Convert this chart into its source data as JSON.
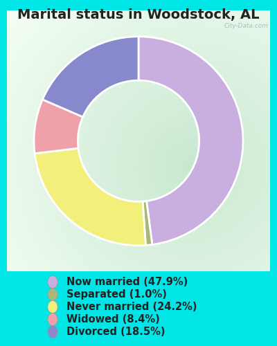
{
  "title": "Marital status in Woodstock, AL",
  "slices": [
    47.9,
    1.0,
    24.2,
    8.4,
    18.5
  ],
  "labels": [
    "Now married (47.9%)",
    "Separated (1.0%)",
    "Never married (24.2%)",
    "Widowed (8.4%)",
    "Divorced (18.5%)"
  ],
  "colors": [
    "#c9aee0",
    "#a8b87a",
    "#f2f07a",
    "#f0a0a8",
    "#8888cc"
  ],
  "background_color": "#00e5e5",
  "chart_bg_color": "#d8eedd",
  "title_fontsize": 14,
  "legend_fontsize": 10.5,
  "start_angle": 90,
  "watermark": "City-Data.com",
  "watermark_color": "#aabbcc"
}
